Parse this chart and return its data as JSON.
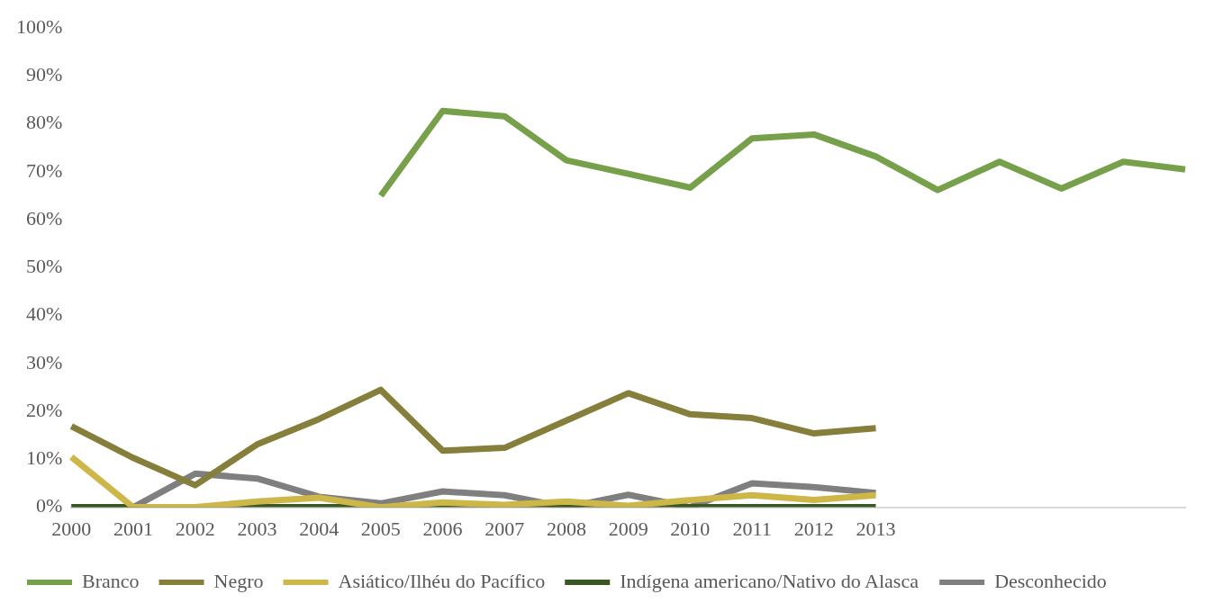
{
  "chart_data": {
    "type": "line",
    "categories": [
      "2000",
      "2001",
      "2002",
      "2003",
      "2004",
      "2005",
      "2006",
      "2007",
      "2008",
      "2009",
      "2010",
      "2011",
      "2012",
      "2013",
      null,
      null,
      null,
      null,
      null
    ],
    "series": [
      {
        "name": "Branco",
        "color": "#77a04a",
        "values": [
          null,
          null,
          null,
          null,
          null,
          65,
          82.7,
          81.6,
          72.4,
          69.6,
          66.7,
          77,
          77.8,
          73.2,
          66.2,
          72.1,
          66.5,
          72.1,
          70.5
        ]
      },
      {
        "name": "Negro",
        "color": "#867f3b",
        "values": [
          16.9,
          10.3,
          4.6,
          13.1,
          18.4,
          24.5,
          11.8,
          12.4,
          18.1,
          23.8,
          19.4,
          18.6,
          15.4,
          16.5,
          null,
          null,
          null,
          null,
          null
        ]
      },
      {
        "name": "Asiático/Ilhéu do Pacífico",
        "color": "#cdb748",
        "values": [
          10.5,
          0,
          0,
          1.2,
          2,
          0,
          1,
          0.5,
          1.2,
          0.3,
          1.5,
          2.5,
          1.5,
          2.5,
          null,
          null,
          null,
          null,
          null
        ]
      },
      {
        "name": "Indígena americano/Nativo do Alasca",
        "color": "#385723",
        "values": [
          0,
          0,
          0,
          0,
          0,
          0,
          0.5,
          0,
          0,
          0,
          0,
          0,
          0,
          0,
          null,
          null,
          null,
          null,
          null
        ]
      },
      {
        "name": "Desconhecido",
        "color": "#7f7f7f",
        "values": [
          0,
          0,
          7,
          6,
          2.2,
          0.8,
          3.3,
          2.5,
          0,
          2.6,
          0,
          5,
          4.2,
          3,
          null,
          null,
          null,
          null,
          null
        ]
      }
    ],
    "ylim": [
      0,
      100
    ],
    "yticks": [
      {
        "value": 0,
        "label": "0%"
      },
      {
        "value": 10,
        "label": "10%"
      },
      {
        "value": 20,
        "label": "20%"
      },
      {
        "value": 30,
        "label": "30%"
      },
      {
        "value": 40,
        "label": "40%"
      },
      {
        "value": 50,
        "label": "50%"
      },
      {
        "value": 60,
        "label": "60%"
      },
      {
        "value": 70,
        "label": "70%"
      },
      {
        "value": 80,
        "label": "80%"
      },
      {
        "value": 90,
        "label": "90%"
      },
      {
        "value": 100,
        "label": "100%"
      }
    ],
    "grid": false,
    "legend": "bottom",
    "marker": "none",
    "line_style": "solid"
  }
}
